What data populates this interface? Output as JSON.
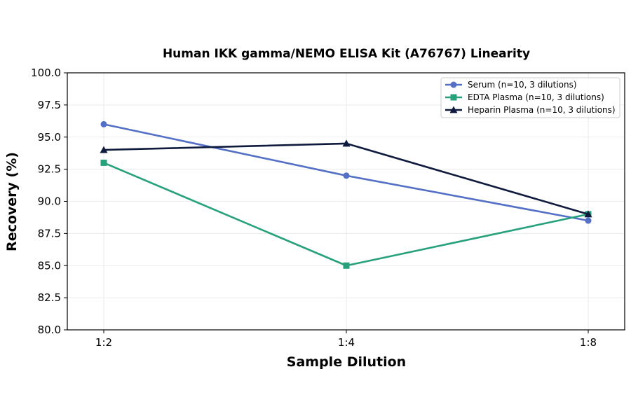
{
  "chart_data": {
    "type": "line",
    "title": "Human IKK gamma/NEMO ELISA Kit (A76767) Linearity",
    "xlabel": "Sample Dilution",
    "ylabel": "Recovery (%)",
    "categories": [
      "1:2",
      "1:4",
      "1:8"
    ],
    "ylim": [
      80.0,
      100.0
    ],
    "yticks": [
      "80.0",
      "82.5",
      "85.0",
      "87.5",
      "90.0",
      "92.5",
      "95.0",
      "97.5",
      "100.0"
    ],
    "grid": true,
    "legend_position": "top-right",
    "series": [
      {
        "name": "Serum (n=10, 3 dilutions)",
        "values": [
          96.0,
          92.0,
          88.5
        ],
        "color": "#5470c6",
        "marker": "circle"
      },
      {
        "name": "EDTA Plasma (n=10, 3 dilutions)",
        "values": [
          93.0,
          85.0,
          89.0
        ],
        "color": "#26a17b",
        "marker": "square"
      },
      {
        "name": "Heparin Plasma (n=10, 3 dilutions)",
        "values": [
          94.0,
          94.5,
          89.0
        ],
        "color": "#0f1b3d",
        "marker": "triangle"
      }
    ]
  }
}
